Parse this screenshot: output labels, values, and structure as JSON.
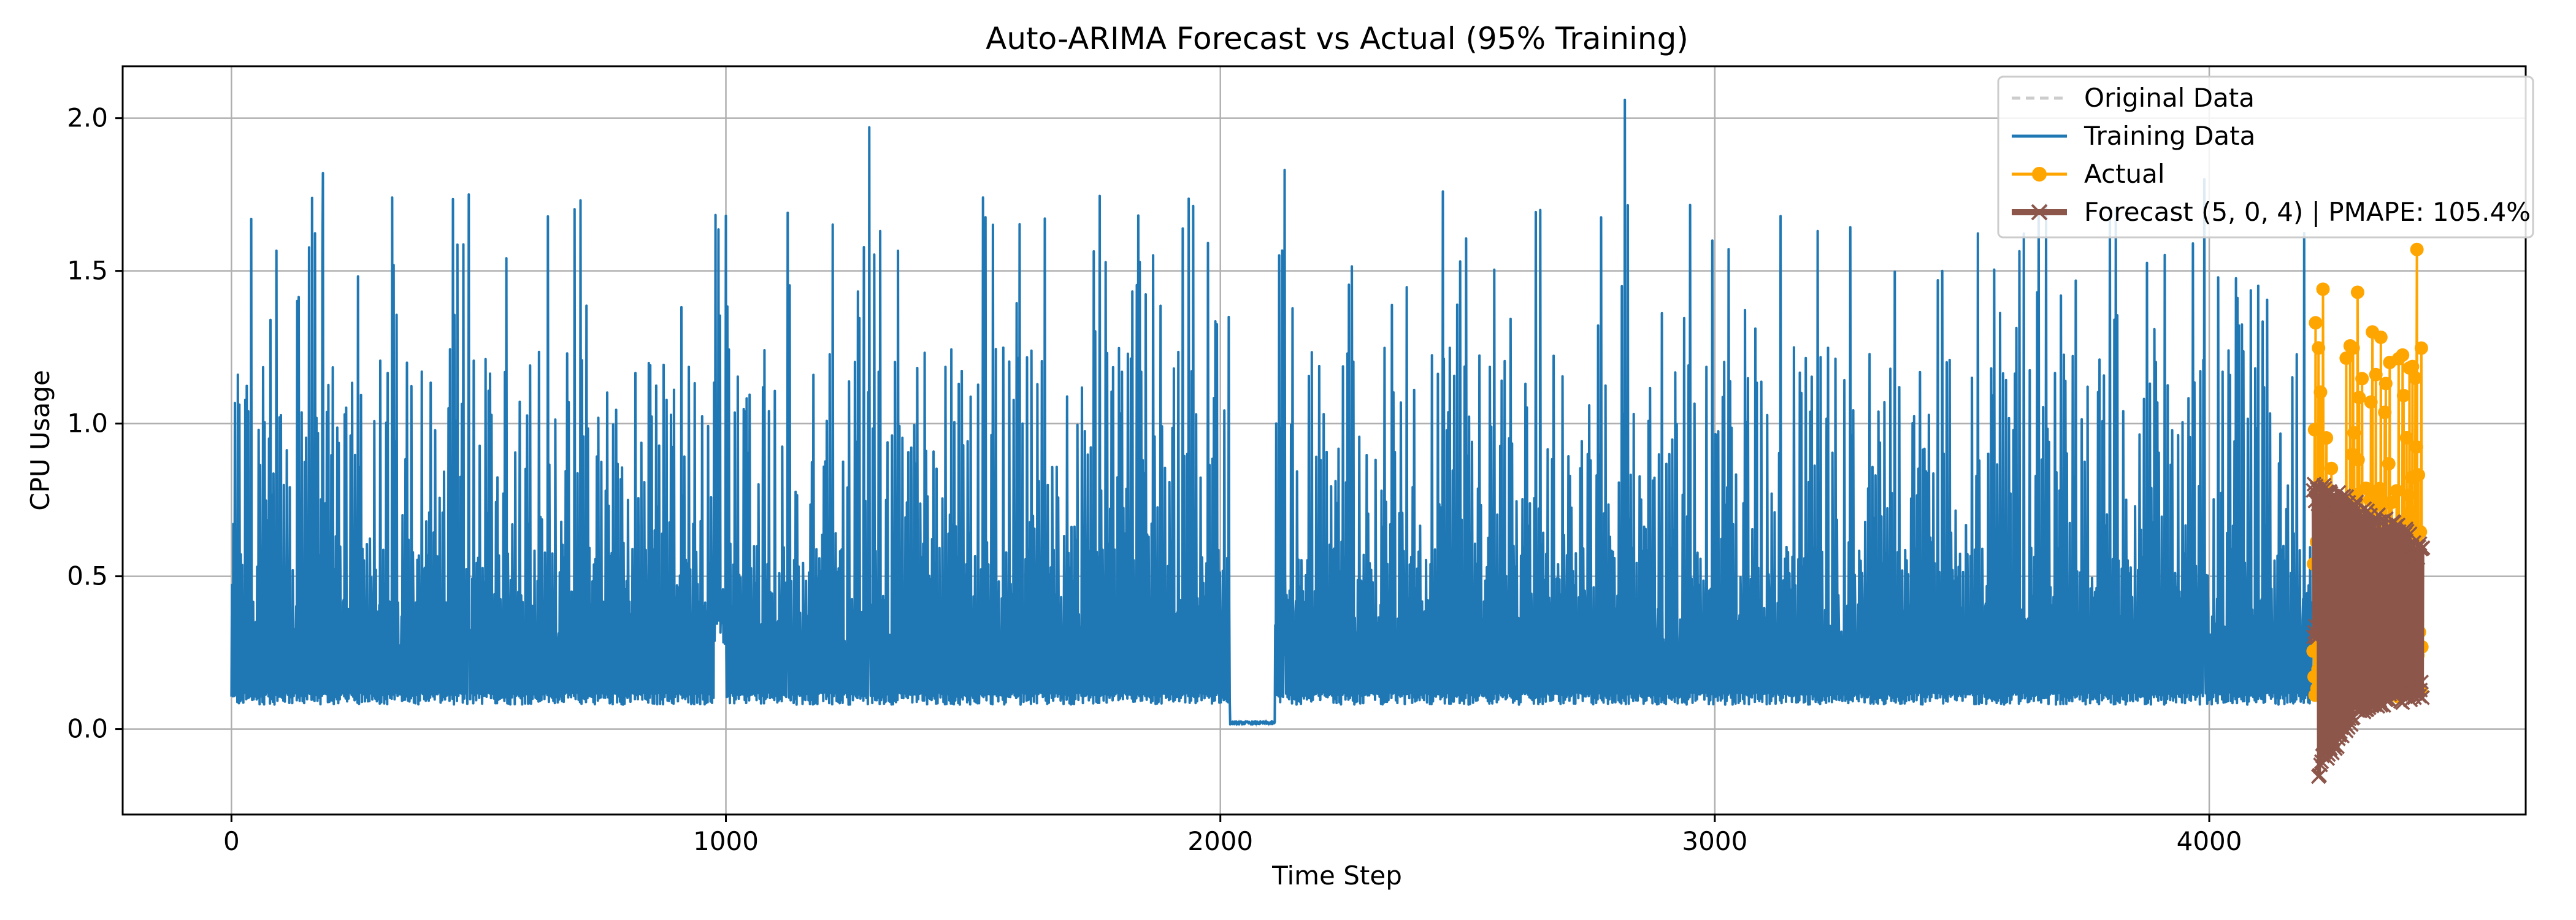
{
  "chart_data": {
    "type": "line",
    "title": "Auto-ARIMA Forecast vs Actual (95% Training)",
    "xlabel": "Time Step",
    "ylabel": "CPU Usage",
    "xlim": [
      -220,
      4640
    ],
    "ylim": [
      -0.28,
      2.17
    ],
    "xticks": [
      0,
      1000,
      2000,
      3000,
      4000
    ],
    "xtick_labels": [
      "0",
      "1000",
      "2000",
      "3000",
      "4000"
    ],
    "yticks": [
      0.0,
      0.5,
      1.0,
      1.5,
      2.0
    ],
    "ytick_labels": [
      "0.0",
      "0.5",
      "1.0",
      "1.5",
      "2.0"
    ],
    "grid": true,
    "legend_position": "top-right",
    "colors": {
      "original": "#cccccc",
      "training": "#1f77b4",
      "actual": "#ffa500",
      "forecast": "#8c564b"
    },
    "series": [
      {
        "name": "Original Data",
        "style": "dashed",
        "x_range": [
          0,
          4430
        ],
        "note_values": "same as training + actual"
      },
      {
        "name": "Training Data",
        "style": "solid",
        "x_range": [
          0,
          4208
        ],
        "typical_baseline": 0.08,
        "typical_upper": 1.2,
        "notable_peaks": [
          {
            "x": 40,
            "y": 1.67
          },
          {
            "x": 185,
            "y": 1.82
          },
          {
            "x": 325,
            "y": 1.74
          },
          {
            "x": 480,
            "y": 1.75
          },
          {
            "x": 1000,
            "y": 1.68
          },
          {
            "x": 1125,
            "y": 1.69
          },
          {
            "x": 1290,
            "y": 1.97
          },
          {
            "x": 1520,
            "y": 1.74
          },
          {
            "x": 2130,
            "y": 1.83
          },
          {
            "x": 2450,
            "y": 1.76
          },
          {
            "x": 2818,
            "y": 2.06
          },
          {
            "x": 3990,
            "y": 1.8
          }
        ],
        "flat_segments": [
          {
            "x_start": 2020,
            "x_end": 2110,
            "y": 0.02
          }
        ]
      },
      {
        "name": "Actual",
        "style": "solid-markers-o",
        "x_range": [
          4210,
          4430
        ],
        "notable_points": [
          {
            "x": 4215,
            "y": 1.33
          },
          {
            "x": 4230,
            "y": 1.44
          },
          {
            "x": 4300,
            "y": 1.43
          },
          {
            "x": 4330,
            "y": 1.3
          },
          {
            "x": 4365,
            "y": 1.2
          },
          {
            "x": 4420,
            "y": 1.57
          },
          {
            "x": 4432,
            "y": 1.12
          }
        ]
      },
      {
        "name": "Forecast (5, 0, 4) | PMAPE: 105.4%",
        "style": "solid-markers-x",
        "x_range": [
          4210,
          4432
        ],
        "upper_envelope": [
          [
            4210,
            0.82
          ],
          [
            4432,
            0.63
          ]
        ],
        "lower_envelope": [
          [
            4220,
            -0.17
          ],
          [
            4300,
            0.05
          ],
          [
            4432,
            0.1
          ]
        ]
      }
    ]
  },
  "legend": {
    "items": [
      {
        "label": "Original Data"
      },
      {
        "label": "Training Data"
      },
      {
        "label": "Actual"
      },
      {
        "label": "Forecast (5, 0, 4) | PMAPE: 105.4%"
      }
    ]
  }
}
